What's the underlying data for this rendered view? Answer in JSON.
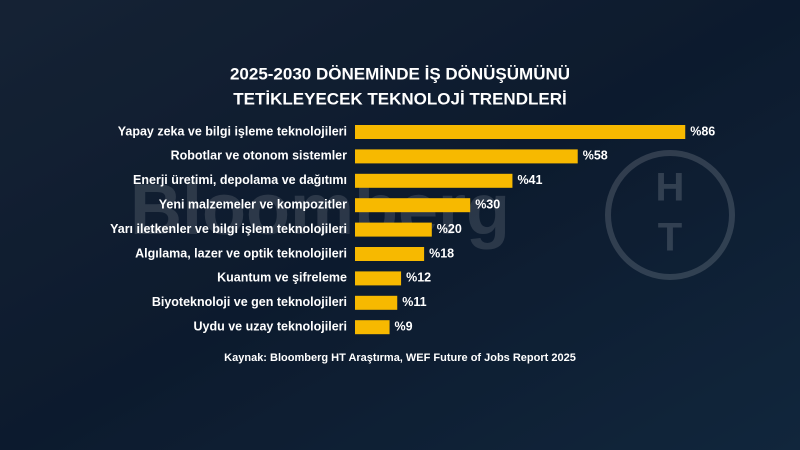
{
  "chart_data": {
    "type": "bar",
    "orientation": "horizontal",
    "title": [
      "2025-2030 DÖNEMİNDE İŞ DÖNÜŞÜMÜNÜ",
      "TETİKLEYECEK TEKNOLOJİ TRENDLERİ"
    ],
    "categories": [
      "Yapay zeka ve bilgi işleme teknolojileri",
      "Robotlar ve otonom sistemler",
      "Enerji üretimi, depolama ve dağıtımı",
      "Yeni malzemeler ve kompozitler",
      "Yarı iletkenler ve bilgi işlem teknolojileri",
      "Algılama, lazer ve optik teknolojileri",
      "Kuantum ve şifreleme",
      "Biyoteknoloji ve gen teknolojileri",
      "Uydu ve uzay teknolojileri"
    ],
    "values": [
      86,
      58,
      41,
      30,
      20,
      18,
      12,
      11,
      9
    ],
    "value_labels": [
      "%86",
      "%58",
      "%41",
      "%30",
      "%20",
      "%18",
      "%12",
      "%11",
      "%9"
    ],
    "color": "#f7b900",
    "source": "Kaynak: Bloomberg HT Araştırma, WEF Future of Jobs Report 2025",
    "watermark": "Bloomberg",
    "logo": [
      "H",
      "T"
    ]
  }
}
